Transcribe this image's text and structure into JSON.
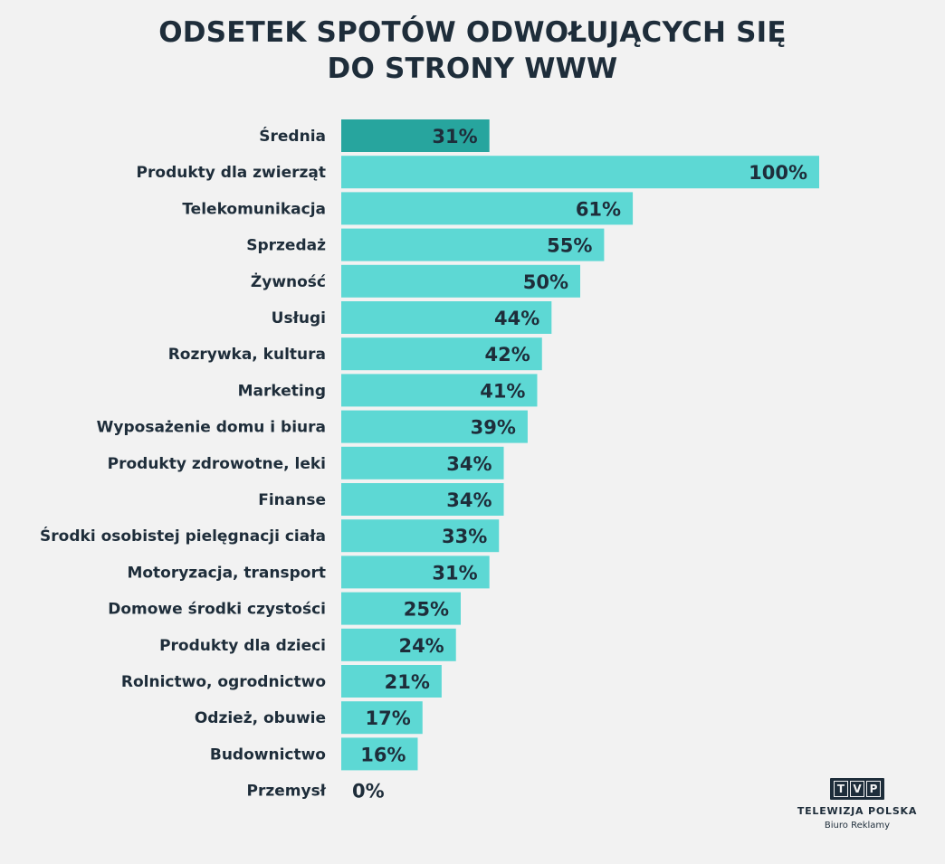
{
  "title_lines": [
    "ODSETEK SPOTÓW ODWOŁUJĄCYCH SIĘ",
    "DO STRONY WWW"
  ],
  "chart_data": {
    "type": "bar",
    "orientation": "horizontal",
    "title": "ODSETEK SPOTÓW ODWOŁUJĄCYCH SIĘ DO STRONY WWW",
    "categories": [
      "Średnia",
      "Produkty dla zwierząt",
      "Telekomunikacja",
      "Sprzedaż",
      "Żywność",
      "Usługi",
      "Rozrywka, kultura",
      "Marketing",
      "Wyposażenie domu i biura",
      "Produkty zdrowotne, leki",
      "Finanse",
      "Środki osobistej pielęgnacji ciała",
      "Motoryzacja, transport",
      "Domowe środki czystości",
      "Produkty dla dzieci",
      "Rolnictwo, ogrodnictwo",
      "Odzież, obuwie",
      "Budownictwo",
      "Przemysł"
    ],
    "values": [
      31,
      100,
      61,
      55,
      50,
      44,
      42,
      41,
      39,
      34,
      34,
      33,
      31,
      25,
      24,
      21,
      17,
      16,
      0
    ],
    "value_labels": [
      "31%",
      "100%",
      "61%",
      "55%",
      "50%",
      "44%",
      "42%",
      "41%",
      "39%",
      "34%",
      "34%",
      "33%",
      "31%",
      "25%",
      "24%",
      "21%",
      "17%",
      "16%",
      "0%"
    ],
    "highlight_category": "Średnia",
    "xlim": [
      0,
      100
    ],
    "colors": {
      "bar": "#5dd8d4",
      "highlight": "#27a59e",
      "text": "#1e2d3a"
    }
  },
  "logo": {
    "box_letters": [
      "T",
      "V",
      "P"
    ],
    "name": "TELEWIZJA POLSKA",
    "subtitle": "Biuro Reklamy"
  }
}
